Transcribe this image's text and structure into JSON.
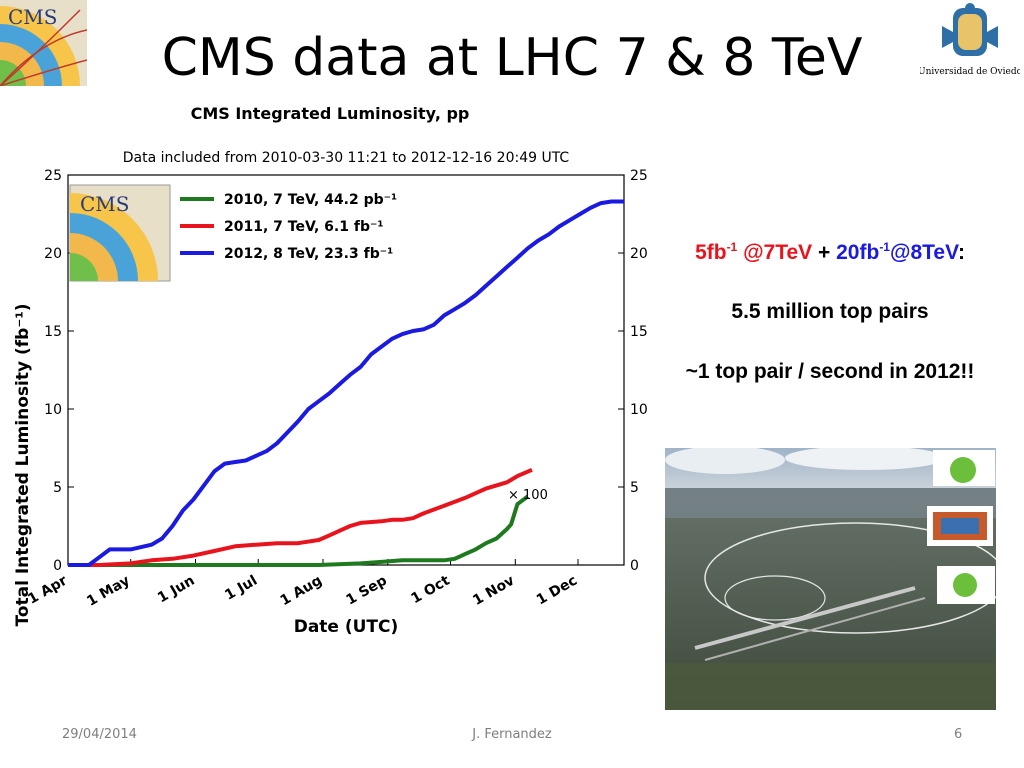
{
  "slide": {
    "title": "CMS data at LHC 7 & 8 TeV",
    "footer_date": "29/04/2014",
    "footer_author": "J. Fernandez",
    "page_number": "6",
    "university_name": "Universidad de Oviedo",
    "cms_logo_text": "CMS"
  },
  "summary": {
    "line1_a": "5fb",
    "line1_a_sup": "-1",
    "line1_b": " @7TeV",
    "line1_plus": " + ",
    "line1_c": "20fb",
    "line1_c_sup": "-1",
    "line1_d": "@8TeV",
    "line1_colon": ":",
    "line2": "5.5 million top pairs",
    "line3": "~1 top pair / second in 2012!!"
  },
  "chart_data": {
    "type": "line",
    "title": "CMS Integrated Luminosity, pp",
    "subtitle": "Data included from 2010-03-30 11:21 to 2012-12-16 20:49 UTC",
    "xlabel": "Date (UTC)",
    "ylabel": "Total Integrated Luminosity (fb⁻¹)",
    "ylim": [
      0,
      25
    ],
    "yticks": [
      0,
      5,
      10,
      15,
      20,
      25
    ],
    "xticks": [
      "1 Apr",
      "1 May",
      "1 Jun",
      "1 Jul",
      "1 Aug",
      "1 Sep",
      "1 Oct",
      "1 Nov",
      "1 Dec"
    ],
    "x_unit": "day of year (1 Apr = 0)",
    "xlim": [
      0,
      266
    ],
    "xtick_days": [
      0,
      30,
      61,
      91,
      122,
      153,
      183,
      214,
      244
    ],
    "annotation": "× 100",
    "legend_position": "top-left",
    "grid": false,
    "series": [
      {
        "name": "2010, 7 TeV, 44.2 pb⁻¹",
        "color": "#1f7a1f",
        "x": [
          0,
          30,
          60,
          90,
          120,
          140,
          150,
          160,
          170,
          180,
          185,
          190,
          195,
          200,
          205,
          210,
          212,
          215,
          220
        ],
        "values": [
          0,
          0,
          0,
          0,
          0,
          0.1,
          0.2,
          0.3,
          0.3,
          0.3,
          0.4,
          0.7,
          1.0,
          1.4,
          1.7,
          2.3,
          2.6,
          3.9,
          4.4
        ]
      },
      {
        "name": "2011, 7 TeV, 6.1 fb⁻¹",
        "color": "#e8141d",
        "x": [
          0,
          15,
          30,
          40,
          50,
          60,
          70,
          80,
          90,
          100,
          110,
          120,
          125,
          130,
          135,
          140,
          150,
          155,
          160,
          165,
          170,
          180,
          190,
          200,
          210,
          215,
          222
        ],
        "values": [
          0,
          0,
          0.1,
          0.3,
          0.4,
          0.6,
          0.9,
          1.2,
          1.3,
          1.4,
          1.4,
          1.6,
          1.9,
          2.2,
          2.5,
          2.7,
          2.8,
          2.9,
          2.9,
          3.0,
          3.3,
          3.8,
          4.3,
          4.9,
          5.3,
          5.7,
          6.1
        ]
      },
      {
        "name": "2012, 8 TeV, 23.3 fb⁻¹",
        "color": "#1a1ae0",
        "x": [
          0,
          10,
          15,
          20,
          30,
          40,
          45,
          50,
          55,
          60,
          65,
          70,
          75,
          80,
          85,
          90,
          95,
          100,
          105,
          110,
          115,
          120,
          125,
          130,
          135,
          140,
          145,
          150,
          155,
          160,
          165,
          170,
          175,
          180,
          185,
          190,
          195,
          200,
          205,
          210,
          215,
          220,
          225,
          230,
          235,
          240,
          245,
          250,
          255,
          260,
          266
        ],
        "values": [
          0,
          0,
          0.5,
          1.0,
          1.0,
          1.3,
          1.7,
          2.5,
          3.5,
          4.2,
          5.1,
          6.0,
          6.5,
          6.6,
          6.7,
          7.0,
          7.3,
          7.8,
          8.5,
          9.2,
          10.0,
          10.5,
          11.0,
          11.6,
          12.2,
          12.7,
          13.5,
          14.0,
          14.5,
          14.8,
          15.0,
          15.1,
          15.4,
          16.0,
          16.4,
          16.8,
          17.3,
          17.9,
          18.5,
          19.1,
          19.7,
          20.3,
          20.8,
          21.2,
          21.7,
          22.1,
          22.5,
          22.9,
          23.2,
          23.3,
          23.3
        ]
      }
    ]
  },
  "colors": {
    "accent_red": "#e8141d",
    "accent_blue": "#1a1ae0",
    "footer_gray": "#7f7f7f"
  }
}
